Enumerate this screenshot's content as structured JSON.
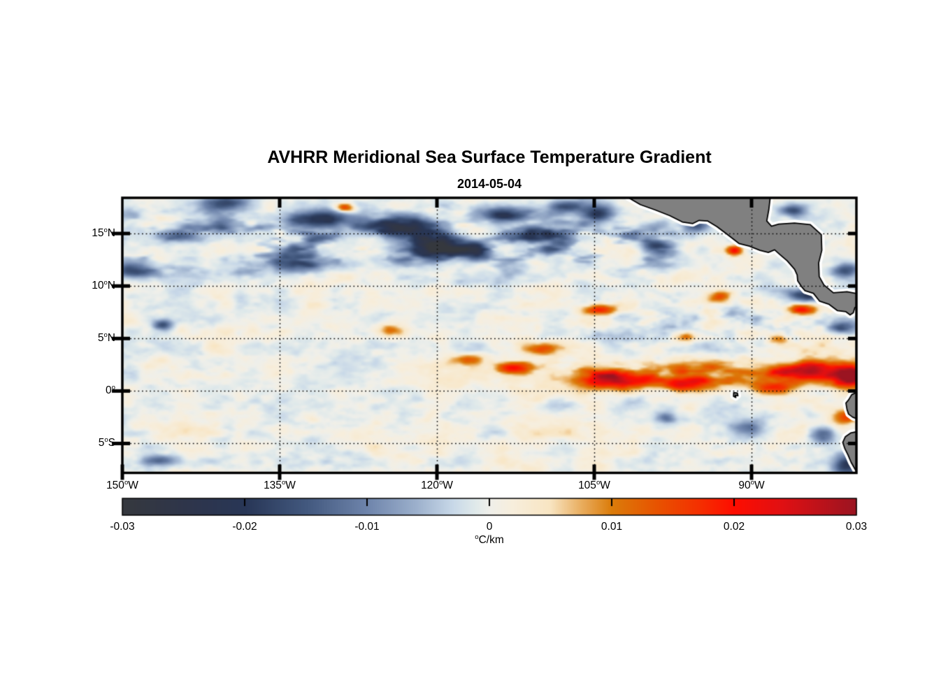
{
  "title": "AVHRR Meridional Sea Surface Temperature Gradient",
  "subtitle": "2014-05-04",
  "chart_data": {
    "type": "heatmap",
    "variable": "meridional sea surface temperature gradient",
    "source_note": "AVHRR satellite field over the eastern tropical Pacific",
    "lon_range": [
      -150,
      -80
    ],
    "lat_range": [
      -7.8,
      18.4
    ],
    "grid": "dotted black graticule every 5 deg latitude / 15 deg longitude",
    "axes": {
      "deg": "o",
      "y_ticks": [
        {
          "lat": 15,
          "value": "15",
          "hemi": "N"
        },
        {
          "lat": 10,
          "value": "10",
          "hemi": "N"
        },
        {
          "lat": 5,
          "value": "5",
          "hemi": "N"
        },
        {
          "lat": 0,
          "value": "0",
          "hemi": ""
        },
        {
          "lat": -5,
          "value": "5",
          "hemi": "S"
        }
      ],
      "x_ticks": [
        {
          "lon": -150,
          "value": "150",
          "hemi": "W"
        },
        {
          "lon": -135,
          "value": "135",
          "hemi": "W"
        },
        {
          "lon": -120,
          "value": "120",
          "hemi": "W"
        },
        {
          "lon": -105,
          "value": "105",
          "hemi": "W"
        },
        {
          "lon": -90,
          "value": "90",
          "hemi": "W"
        }
      ]
    },
    "colorbar": {
      "min": -0.03,
      "max": 0.03,
      "tick_values": [
        -0.03,
        -0.02,
        -0.01,
        0,
        0.01,
        0.02,
        0.03
      ],
      "tick_labels": [
        "-0.03",
        "-0.02",
        "-0.01",
        "0",
        "0.01",
        "0.02",
        "0.03"
      ],
      "unit_sup": "o",
      "unit_text": "C/km",
      "stops": [
        [
          0.0,
          "#35383e"
        ],
        [
          0.09,
          "#2e354b"
        ],
        [
          0.167,
          "#283656"
        ],
        [
          0.25,
          "#42587e"
        ],
        [
          0.333,
          "#6e84ab"
        ],
        [
          0.4,
          "#9cb0cc"
        ],
        [
          0.45,
          "#c8d8e8"
        ],
        [
          0.48,
          "#dfe9ea"
        ],
        [
          0.5,
          "#efefea"
        ],
        [
          0.53,
          "#f7eedd"
        ],
        [
          0.583,
          "#f8e5c2"
        ],
        [
          0.625,
          "#e9ae60"
        ],
        [
          0.667,
          "#db7c0a"
        ],
        [
          0.73,
          "#e85200"
        ],
        [
          0.79,
          "#f52d00"
        ],
        [
          0.833,
          "#fe0d00"
        ],
        [
          0.9,
          "#e01013"
        ],
        [
          1.0,
          "#9b1421"
        ]
      ]
    },
    "land_color": "#808080",
    "coast_outline_color": "#000000",
    "nodata_fringe_color": "#ffffff",
    "pattern_notes": [
      "band of strong negative (dark blue) gradient blobs between 11N and 18N, mainly west of 100W",
      "strong positive (orange/red) equatorial front band near 0.5-2.5N east of 125W, intensifying toward the coast",
      "mixed orange/blue eddies between 2N and 12N east of 112W",
      "pale weak-gradient field south of the equator with faint warm streaks near 4-6S",
      "gray land: Mexico & Central America (upper right), Ecuador/Peru coast (lower right), Galapagos islet near 91.5W,0.4S"
    ],
    "features": [
      {
        "lon": -140.0,
        "lat": 17.9,
        "rx": 2.6,
        "ry": 0.7,
        "amp": -0.016
      },
      {
        "lon": -131.0,
        "lat": 16.3,
        "rx": 3.0,
        "ry": 0.8,
        "amp": -0.019
      },
      {
        "lon": -123.5,
        "lat": 15.6,
        "rx": 3.4,
        "ry": 1.0,
        "amp": -0.023
      },
      {
        "lon": -120.3,
        "lat": 13.6,
        "rx": 3.4,
        "ry": 0.9,
        "amp": -0.021
      },
      {
        "lon": -133.5,
        "lat": 12.1,
        "rx": 2.8,
        "ry": 0.8,
        "amp": -0.016
      },
      {
        "lon": -144.5,
        "lat": 14.8,
        "rx": 2.0,
        "ry": 0.6,
        "amp": -0.012
      },
      {
        "lon": -149.0,
        "lat": 11.4,
        "rx": 1.8,
        "ry": 0.7,
        "amp": -0.013
      },
      {
        "lon": -113.5,
        "lat": 16.8,
        "rx": 2.2,
        "ry": 0.8,
        "amp": -0.018
      },
      {
        "lon": -111.0,
        "lat": 14.9,
        "rx": 2.0,
        "ry": 0.7,
        "amp": -0.017
      },
      {
        "lon": -116.0,
        "lat": 12.9,
        "rx": 1.6,
        "ry": 0.6,
        "amp": -0.014
      },
      {
        "lon": -107.5,
        "lat": 17.6,
        "rx": 1.5,
        "ry": 0.6,
        "amp": -0.015
      },
      {
        "lon": -104.7,
        "lat": 16.9,
        "rx": 1.6,
        "ry": 0.8,
        "amp": -0.019
      },
      {
        "lon": -95.3,
        "lat": 15.8,
        "rx": 1.3,
        "ry": 0.6,
        "amp": -0.017
      },
      {
        "lon": -99.2,
        "lat": 13.8,
        "rx": 1.4,
        "ry": 0.7,
        "amp": -0.013
      },
      {
        "lon": -146.2,
        "lat": 6.3,
        "rx": 0.9,
        "ry": 0.5,
        "amp": -0.015
      },
      {
        "lon": -84.7,
        "lat": 9.1,
        "rx": 1.6,
        "ry": 0.6,
        "amp": -0.021
      },
      {
        "lon": -81.3,
        "lat": 6.2,
        "rx": 1.6,
        "ry": 0.8,
        "amp": -0.015
      },
      {
        "lon": -86.0,
        "lat": 17.2,
        "rx": 1.2,
        "ry": 0.6,
        "amp": -0.013
      },
      {
        "lon": -81.0,
        "lat": 11.5,
        "rx": 1.3,
        "ry": 0.7,
        "amp": -0.015
      },
      {
        "lon": -98.2,
        "lat": -2.6,
        "rx": 1.0,
        "ry": 0.6,
        "amp": -0.011
      },
      {
        "lon": -90.3,
        "lat": -3.6,
        "rx": 1.5,
        "ry": 0.9,
        "amp": -0.014
      },
      {
        "lon": -83.2,
        "lat": -4.2,
        "rx": 1.2,
        "ry": 0.8,
        "amp": -0.015
      },
      {
        "lon": -80.8,
        "lat": -7.0,
        "rx": 1.4,
        "ry": 0.9,
        "amp": -0.021
      },
      {
        "lon": -146.5,
        "lat": -6.6,
        "rx": 1.4,
        "ry": 0.5,
        "amp": -0.013
      },
      {
        "lon": -103.0,
        "lat": 1.0,
        "rx": 3.5,
        "ry": 0.75,
        "amp": 0.024
      },
      {
        "lon": -96.0,
        "lat": 0.6,
        "rx": 2.0,
        "ry": 0.7,
        "amp": 0.016
      },
      {
        "lon": -112.6,
        "lat": 2.2,
        "rx": 1.6,
        "ry": 0.55,
        "amp": 0.018
      },
      {
        "lon": -117.0,
        "lat": 3.0,
        "rx": 1.5,
        "ry": 0.5,
        "amp": 0.01
      },
      {
        "lon": -84.5,
        "lat": 1.9,
        "rx": 3.0,
        "ry": 0.9,
        "amp": 0.022
      },
      {
        "lon": -80.6,
        "lat": 1.3,
        "rx": 1.4,
        "ry": 0.9,
        "amp": 0.026
      },
      {
        "lon": -88.0,
        "lat": 0.2,
        "rx": 2.0,
        "ry": 0.6,
        "amp": 0.014
      },
      {
        "lon": -104.5,
        "lat": 7.7,
        "rx": 1.6,
        "ry": 0.5,
        "amp": 0.021
      },
      {
        "lon": -85.3,
        "lat": 7.7,
        "rx": 1.3,
        "ry": 0.5,
        "amp": 0.022
      },
      {
        "lon": -81.0,
        "lat": -2.5,
        "rx": 1.3,
        "ry": 0.7,
        "amp": 0.018
      },
      {
        "lon": -128.8,
        "lat": 17.5,
        "rx": 0.9,
        "ry": 0.4,
        "amp": 0.019
      },
      {
        "lon": -91.6,
        "lat": 13.4,
        "rx": 0.8,
        "ry": 0.5,
        "amp": 0.02
      },
      {
        "lon": -96.2,
        "lat": 5.1,
        "rx": 1.2,
        "ry": 0.6,
        "amp": 0.014
      },
      {
        "lon": -124.5,
        "lat": 5.8,
        "rx": 1.4,
        "ry": 0.6,
        "amp": 0.011
      },
      {
        "lon": -110.0,
        "lat": 4.0,
        "rx": 1.8,
        "ry": 0.6,
        "amp": 0.013
      },
      {
        "lon": -93.0,
        "lat": 9.0,
        "rx": 1.2,
        "ry": 0.6,
        "amp": 0.013
      },
      {
        "lon": -87.5,
        "lat": 5.0,
        "rx": 1.0,
        "ry": 0.6,
        "amp": 0.012
      }
    ],
    "land": {
      "central_america": [
        [
          -101.8,
          18.45
        ],
        [
          -100.6,
          17.75
        ],
        [
          -99.2,
          17.25
        ],
        [
          -97.8,
          16.7
        ],
        [
          -96.6,
          16.1
        ],
        [
          -95.6,
          15.95
        ],
        [
          -95.0,
          16.25
        ],
        [
          -94.2,
          16.2
        ],
        [
          -93.3,
          15.65
        ],
        [
          -92.3,
          14.9
        ],
        [
          -91.2,
          14.05
        ],
        [
          -90.2,
          13.8
        ],
        [
          -89.2,
          13.4
        ],
        [
          -88.4,
          13.2
        ],
        [
          -87.8,
          13.45
        ],
        [
          -87.3,
          13.0
        ],
        [
          -86.6,
          12.4
        ],
        [
          -85.9,
          11.6
        ],
        [
          -85.65,
          11.05
        ],
        [
          -85.6,
          10.5
        ],
        [
          -85.2,
          9.9
        ],
        [
          -84.9,
          9.55
        ],
        [
          -84.1,
          9.3
        ],
        [
          -83.5,
          8.55
        ],
        [
          -82.6,
          8.25
        ],
        [
          -81.8,
          7.65
        ],
        [
          -81.0,
          7.55
        ],
        [
          -80.6,
          7.25
        ],
        [
          -80.3,
          7.45
        ],
        [
          -80.15,
          7.95
        ],
        [
          -79.8,
          8.15
        ],
        [
          -79.8,
          9.25
        ],
        [
          -80.9,
          9.45
        ],
        [
          -82.2,
          9.35
        ],
        [
          -83.1,
          10.1
        ],
        [
          -83.55,
          10.9
        ],
        [
          -83.6,
          12.2
        ],
        [
          -83.3,
          13.4
        ],
        [
          -83.35,
          14.9
        ],
        [
          -84.4,
          15.85
        ],
        [
          -85.9,
          16.0
        ],
        [
          -87.4,
          15.9
        ],
        [
          -88.1,
          15.7
        ],
        [
          -88.55,
          16.2
        ],
        [
          -88.35,
          17.3
        ],
        [
          -88.2,
          18.6
        ],
        [
          -101.8,
          18.6
        ]
      ],
      "ecuador": [
        [
          -79.8,
          -0.05
        ],
        [
          -80.45,
          -0.35
        ],
        [
          -80.75,
          -0.85
        ],
        [
          -81.0,
          -1.15
        ],
        [
          -80.9,
          -1.75
        ],
        [
          -80.75,
          -2.2
        ],
        [
          -80.35,
          -2.5
        ],
        [
          -79.8,
          -2.7
        ]
      ],
      "peru": [
        [
          -79.8,
          -3.85
        ],
        [
          -80.55,
          -4.0
        ],
        [
          -81.05,
          -4.35
        ],
        [
          -81.3,
          -4.9
        ],
        [
          -81.1,
          -5.5
        ],
        [
          -80.8,
          -6.1
        ],
        [
          -80.5,
          -6.8
        ],
        [
          -80.1,
          -7.5
        ],
        [
          -79.8,
          -8.1
        ]
      ],
      "galapagos": [
        [
          -91.7,
          -0.15
        ],
        [
          -91.35,
          -0.2
        ],
        [
          -91.3,
          -0.45
        ],
        [
          -91.55,
          -0.4
        ],
        [
          -91.5,
          -0.62
        ],
        [
          -91.72,
          -0.5
        ]
      ]
    }
  }
}
